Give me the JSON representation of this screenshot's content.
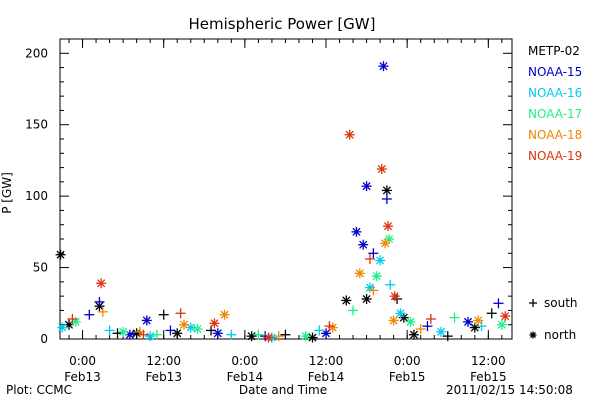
{
  "chart_data": {
    "type": "scatter",
    "title": "Hemispheric Power [GW]",
    "ylabel": "P [GW]",
    "xlabel": "Date and Time",
    "ylim": [
      0,
      210
    ],
    "xlim": [
      "2011-02-12 20:40",
      "2011-02-15 15:30"
    ],
    "y_ticks": [
      0,
      50,
      100,
      150,
      200
    ],
    "x_ticks": [
      {
        "t": "2011-02-13 00:00",
        "line1": "0:00",
        "line2": "Feb13"
      },
      {
        "t": "2011-02-13 12:00",
        "line1": "12:00",
        "line2": "Feb13"
      },
      {
        "t": "2011-02-14 00:00",
        "line1": "0:00",
        "line2": "Feb14"
      },
      {
        "t": "2011-02-14 12:00",
        "line1": "12:00",
        "line2": "Feb14"
      },
      {
        "t": "2011-02-15 00:00",
        "line1": "0:00",
        "line2": "Feb15"
      },
      {
        "t": "2011-02-15 12:00",
        "line1": "12:00",
        "line2": "Feb15"
      }
    ],
    "grid": false,
    "legend_position": "right",
    "hemisphere_legend": [
      {
        "symbol": "+",
        "label": "south"
      },
      {
        "symbol": "*",
        "label": "north"
      }
    ],
    "series": [
      {
        "name": "METP-02",
        "color": "#000000",
        "points": [
          [
            "2011-02-12 20:45",
            59,
            "*"
          ],
          [
            "2011-02-12 22:00",
            10,
            "*"
          ],
          [
            "2011-02-13 02:30",
            23,
            "*"
          ],
          [
            "2011-02-13 05:10",
            4,
            "+"
          ],
          [
            "2011-02-13 08:00",
            4,
            "*"
          ],
          [
            "2011-02-13 12:00",
            17,
            "+"
          ],
          [
            "2011-02-13 14:00",
            4,
            "*"
          ],
          [
            "2011-02-13 19:00",
            6,
            "+"
          ],
          [
            "2011-02-14 01:00",
            2,
            "*"
          ],
          [
            "2011-02-14 06:00",
            3,
            "+"
          ],
          [
            "2011-02-14 10:00",
            1,
            "*"
          ],
          [
            "2011-02-14 15:00",
            27,
            "*"
          ],
          [
            "2011-02-14 18:00",
            28,
            "*"
          ],
          [
            "2011-02-14 21:00",
            104,
            "*"
          ],
          [
            "2011-02-14 22:30",
            28,
            "+"
          ],
          [
            "2011-02-14 23:30",
            15,
            "*"
          ],
          [
            "2011-02-15 01:00",
            3,
            "*"
          ],
          [
            "2011-02-15 06:00",
            2,
            "+"
          ],
          [
            "2011-02-15 10:00",
            8,
            "*"
          ],
          [
            "2011-02-15 12:30",
            18,
            "+"
          ]
        ]
      },
      {
        "name": "NOAA-15",
        "color": "#0000cc",
        "points": [
          [
            "2011-02-13 01:00",
            17,
            "+"
          ],
          [
            "2011-02-13 02:30",
            26,
            "+"
          ],
          [
            "2011-02-13 07:00",
            3,
            "*"
          ],
          [
            "2011-02-13 09:30",
            13,
            "*"
          ],
          [
            "2011-02-13 13:00",
            6,
            "+"
          ],
          [
            "2011-02-13 20:00",
            4,
            "*"
          ],
          [
            "2011-02-14 03:00",
            2,
            "+"
          ],
          [
            "2011-02-14 12:00",
            4,
            "*"
          ],
          [
            "2011-02-14 16:30",
            75,
            "*"
          ],
          [
            "2011-02-14 18:00",
            107,
            "*"
          ],
          [
            "2011-02-14 19:00",
            60,
            "+"
          ],
          [
            "2011-02-14 20:30",
            191,
            "*"
          ],
          [
            "2011-02-14 21:00",
            98,
            "+"
          ],
          [
            "2011-02-14 17:30",
            66,
            "*"
          ],
          [
            "2011-02-15 03:00",
            9,
            "+"
          ],
          [
            "2011-02-15 09:00",
            12,
            "*"
          ],
          [
            "2011-02-15 13:30",
            25,
            "+"
          ]
        ]
      },
      {
        "name": "NOAA-16",
        "color": "#00ccee",
        "points": [
          [
            "2011-02-12 21:00",
            8,
            "*"
          ],
          [
            "2011-02-13 04:00",
            6,
            "+"
          ],
          [
            "2011-02-13 10:00",
            2,
            "*"
          ],
          [
            "2011-02-13 16:00",
            8,
            "*"
          ],
          [
            "2011-02-13 22:00",
            3,
            "+"
          ],
          [
            "2011-02-14 04:00",
            1,
            "*"
          ],
          [
            "2011-02-14 11:00",
            6,
            "+"
          ],
          [
            "2011-02-14 18:30",
            36,
            "*"
          ],
          [
            "2011-02-14 20:00",
            55,
            "*"
          ],
          [
            "2011-02-14 21:30",
            38,
            "+"
          ],
          [
            "2011-02-14 23:00",
            18,
            "*"
          ],
          [
            "2011-02-15 05:00",
            5,
            "*"
          ],
          [
            "2011-02-15 11:00",
            9,
            "+"
          ]
        ]
      },
      {
        "name": "NOAA-17",
        "color": "#22ee88",
        "points": [
          [
            "2011-02-12 23:00",
            12,
            "*"
          ],
          [
            "2011-02-13 06:00",
            5,
            "*"
          ],
          [
            "2011-02-13 11:00",
            3,
            "+"
          ],
          [
            "2011-02-13 17:00",
            7,
            "*"
          ],
          [
            "2011-02-14 02:00",
            3,
            "+"
          ],
          [
            "2011-02-14 09:00",
            2,
            "*"
          ],
          [
            "2011-02-14 16:00",
            20,
            "+"
          ],
          [
            "2011-02-14 19:30",
            44,
            "*"
          ],
          [
            "2011-02-14 21:20",
            70,
            "*"
          ],
          [
            "2011-02-15 00:30",
            12,
            "*"
          ],
          [
            "2011-02-15 07:00",
            15,
            "+"
          ],
          [
            "2011-02-15 14:00",
            10,
            "*"
          ]
        ]
      },
      {
        "name": "NOAA-18",
        "color": "#ee8800",
        "points": [
          [
            "2011-02-13 03:00",
            19,
            "+"
          ],
          [
            "2011-02-13 08:30",
            5,
            "+"
          ],
          [
            "2011-02-13 15:00",
            10,
            "*"
          ],
          [
            "2011-02-13 21:00",
            17,
            "*"
          ],
          [
            "2011-02-14 05:00",
            2,
            "+"
          ],
          [
            "2011-02-14 13:00",
            8,
            "*"
          ],
          [
            "2011-02-14 17:00",
            46,
            "*"
          ],
          [
            "2011-02-14 19:00",
            34,
            "+"
          ],
          [
            "2011-02-14 20:45",
            67,
            "*"
          ],
          [
            "2011-02-14 22:00",
            13,
            "*"
          ],
          [
            "2011-02-15 02:00",
            7,
            "+"
          ],
          [
            "2011-02-15 10:30",
            13,
            "*"
          ]
        ]
      },
      {
        "name": "NOAA-19",
        "color": "#dd3311",
        "points": [
          [
            "2011-02-12 22:30",
            14,
            "+"
          ],
          [
            "2011-02-13 02:45",
            39,
            "*"
          ],
          [
            "2011-02-13 09:00",
            3,
            "+"
          ],
          [
            "2011-02-13 14:30",
            18,
            "+"
          ],
          [
            "2011-02-13 19:30",
            11,
            "*"
          ],
          [
            "2011-02-14 03:30",
            1,
            "*"
          ],
          [
            "2011-02-14 12:30",
            9,
            "+"
          ],
          [
            "2011-02-14 15:30",
            143,
            "*"
          ],
          [
            "2011-02-14 18:30",
            56,
            "+"
          ],
          [
            "2011-02-14 20:15",
            119,
            "*"
          ],
          [
            "2011-02-14 21:10",
            79,
            "*"
          ],
          [
            "2011-02-14 22:10",
            30,
            "*"
          ],
          [
            "2011-02-15 03:30",
            14,
            "+"
          ],
          [
            "2011-02-15 14:30",
            16,
            "*"
          ]
        ]
      }
    ]
  },
  "footer": {
    "plot_credit": "Plot: CCMC",
    "timestamp": "2011/02/15 14:50:08"
  }
}
